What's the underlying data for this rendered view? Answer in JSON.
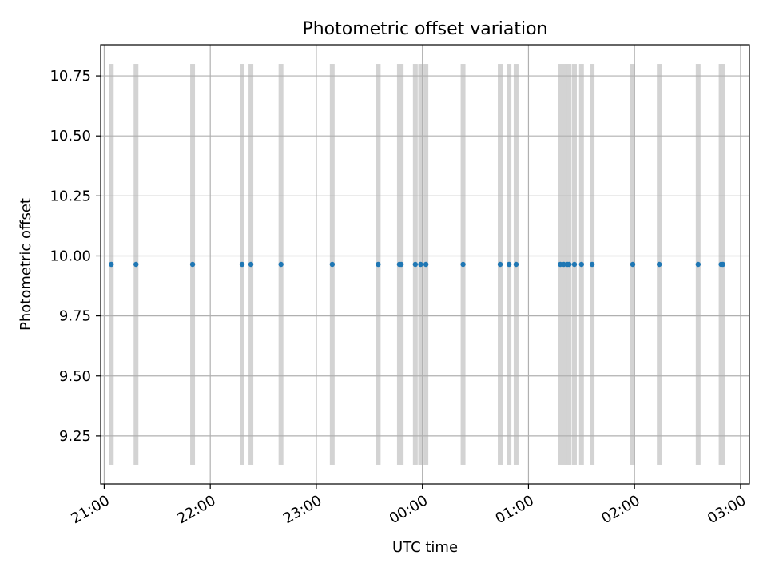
{
  "chart_data": {
    "type": "scatter",
    "title": "Photometric offset variation",
    "xlabel": "UTC time",
    "ylabel": "Photometric offset",
    "x_axis_type": "time",
    "xlim": [
      "20:58",
      "03:05"
    ],
    "ylim": [
      9.05,
      10.88
    ],
    "x_ticks": [
      "21:00",
      "22:00",
      "23:00",
      "00:00",
      "01:00",
      "02:00",
      "03:00"
    ],
    "y_ticks": [
      9.25,
      9.5,
      9.75,
      10.0,
      10.25,
      10.5,
      10.75
    ],
    "y_tick_labels": [
      "9.25",
      "9.50",
      "9.75",
      "10.00",
      "10.25",
      "10.50",
      "10.75"
    ],
    "grid": true,
    "marker_color": "#1f77b4",
    "band_color": "#d3d3d3",
    "band_range": [
      9.13,
      10.8
    ],
    "points": [
      {
        "x": "21:04",
        "y": 9.965
      },
      {
        "x": "21:18",
        "y": 9.965
      },
      {
        "x": "21:50",
        "y": 9.965
      },
      {
        "x": "22:18",
        "y": 9.965
      },
      {
        "x": "22:23",
        "y": 9.965
      },
      {
        "x": "22:40",
        "y": 9.965
      },
      {
        "x": "23:09",
        "y": 9.965
      },
      {
        "x": "23:35",
        "y": 9.965
      },
      {
        "x": "23:47",
        "y": 9.965
      },
      {
        "x": "23:48",
        "y": 9.965
      },
      {
        "x": "23:56",
        "y": 9.965
      },
      {
        "x": "23:59",
        "y": 9.965
      },
      {
        "x": "00:02",
        "y": 9.965
      },
      {
        "x": "00:23",
        "y": 9.965
      },
      {
        "x": "00:44",
        "y": 9.965
      },
      {
        "x": "00:49",
        "y": 9.965
      },
      {
        "x": "00:53",
        "y": 9.965
      },
      {
        "x": "01:18",
        "y": 9.965
      },
      {
        "x": "01:20",
        "y": 9.965
      },
      {
        "x": "01:22",
        "y": 9.965
      },
      {
        "x": "01:23",
        "y": 9.965
      },
      {
        "x": "01:26",
        "y": 9.965
      },
      {
        "x": "01:30",
        "y": 9.965
      },
      {
        "x": "01:36",
        "y": 9.965
      },
      {
        "x": "01:59",
        "y": 9.965
      },
      {
        "x": "02:14",
        "y": 9.965
      },
      {
        "x": "02:36",
        "y": 9.965
      },
      {
        "x": "02:49",
        "y": 9.965
      },
      {
        "x": "02:50",
        "y": 9.965
      }
    ]
  }
}
